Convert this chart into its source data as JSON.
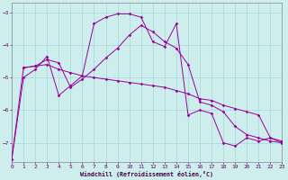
{
  "xlabel": "Windchill (Refroidissement éolien,°C)",
  "background_color": "#cdeeed",
  "line_color": "#990099",
  "grid_color": "#a8d8d8",
  "series1_x": [
    0,
    1,
    2,
    3,
    4,
    5,
    6,
    7,
    8,
    9,
    10,
    11,
    12,
    13,
    14,
    15,
    16,
    17,
    18,
    19,
    20,
    21,
    22,
    23
  ],
  "series1_y": [
    -7.5,
    -5.0,
    -4.75,
    -4.35,
    -5.55,
    -5.25,
    -4.95,
    -3.35,
    -3.15,
    -3.05,
    -3.05,
    -3.15,
    -3.9,
    -4.05,
    -3.35,
    -6.15,
    -6.0,
    -6.1,
    -7.0,
    -7.1,
    -6.85,
    -6.95,
    -6.85,
    -7.0
  ],
  "series2_x": [
    0,
    1,
    2,
    3,
    4,
    5,
    6,
    7,
    8,
    9,
    10,
    11,
    12,
    13,
    14,
    15,
    16,
    17,
    18,
    19,
    20,
    21,
    22,
    23
  ],
  "series2_y": [
    -7.5,
    -4.7,
    -4.65,
    -4.6,
    -4.75,
    -4.85,
    -4.95,
    -5.0,
    -5.05,
    -5.1,
    -5.15,
    -5.2,
    -5.25,
    -5.3,
    -5.4,
    -5.5,
    -5.65,
    -5.7,
    -5.85,
    -5.95,
    -6.05,
    -6.15,
    -6.85,
    -6.95
  ],
  "series3_x": [
    1,
    2,
    3,
    4,
    5,
    6,
    7,
    8,
    9,
    10,
    11,
    12,
    13,
    14,
    15,
    16,
    17,
    18,
    19,
    20,
    21,
    22,
    23
  ],
  "series3_y": [
    -4.7,
    -4.65,
    -4.45,
    -4.55,
    -5.3,
    -5.05,
    -4.75,
    -4.4,
    -4.1,
    -3.7,
    -3.4,
    -3.6,
    -3.9,
    -4.1,
    -4.6,
    -5.75,
    -5.85,
    -6.05,
    -6.5,
    -6.75,
    -6.85,
    -6.95,
    -7.0
  ],
  "ylim": [
    -7.6,
    -2.7
  ],
  "xlim": [
    0,
    23
  ],
  "yticks": [
    -7,
    -6,
    -5,
    -4,
    -3
  ],
  "xticks": [
    0,
    1,
    2,
    3,
    4,
    5,
    6,
    7,
    8,
    9,
    10,
    11,
    12,
    13,
    14,
    15,
    16,
    17,
    18,
    19,
    20,
    21,
    22,
    23
  ]
}
